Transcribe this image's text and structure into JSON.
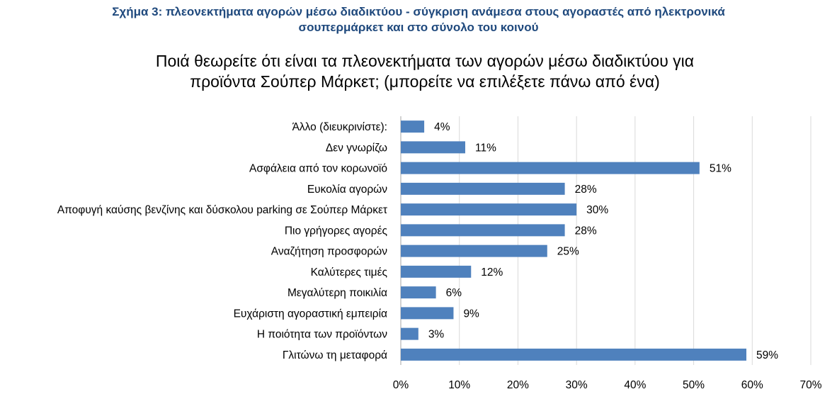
{
  "figure_caption": {
    "line1": "Σχήμα 3: πλεονεκτήματα αγορών μέσω διαδικτύου - σύγκριση ανάμεσα στους αγοραστές από ηλεκτρονικά",
    "line2": "σουπερμάρκετ και στο σύνολο του κοινού"
  },
  "chart_data": {
    "type": "bar",
    "orientation": "horizontal",
    "title": "Ποιά θεωρείτε ότι είναι τα πλεονεκτήματα των αγορών μέσω διαδικτύου για προϊόντα Σούπερ Μάρκετ; (μπορείτε να επιλέξετε πάνω από ένα)",
    "title_lines": [
      "Ποιά θεωρείτε ότι είναι τα πλεονεκτήματα των αγορών μέσω διαδικτύου για",
      "προϊόντα Σούπερ Μάρκετ; (μπορείτε να επιλέξετε πάνω από ένα)"
    ],
    "categories": [
      "Άλλο (διευκρινίστε):",
      "Δεν γνωρίζω",
      "Ασφάλεια από τον κορωνοϊό",
      "Ευκολία αγορών",
      "Αποφυγή καύσης βενζίνης και δύσκολου parking σε Σούπερ Μάρκετ",
      "Πιο γρήγορες αγορές",
      "Αναζήτηση προσφορών",
      "Καλύτερες τιμές",
      "Μεγαλύτερη ποικιλία",
      "Ευχάριστη αγοραστική εμπειρία",
      "Η ποιότητα των προϊόντων",
      "Γλιτώνω τη μεταφορά"
    ],
    "values": [
      4,
      11,
      51,
      28,
      30,
      28,
      25,
      12,
      6,
      9,
      3,
      59
    ],
    "value_labels": [
      "4%",
      "11%",
      "51%",
      "28%",
      "30%",
      "28%",
      "25%",
      "12%",
      "6%",
      "9%",
      "3%",
      "59%"
    ],
    "xlim": [
      0,
      70
    ],
    "x_ticks": [
      0,
      10,
      20,
      30,
      40,
      50,
      60,
      70
    ],
    "x_tick_labels": [
      "0%",
      "10%",
      "20%",
      "30%",
      "40%",
      "50%",
      "60%",
      "70%"
    ],
    "xlabel": "",
    "ylabel": "",
    "grid": "vertical",
    "bar_color": "#4f81bd",
    "grid_color": "#d9d9d9"
  }
}
